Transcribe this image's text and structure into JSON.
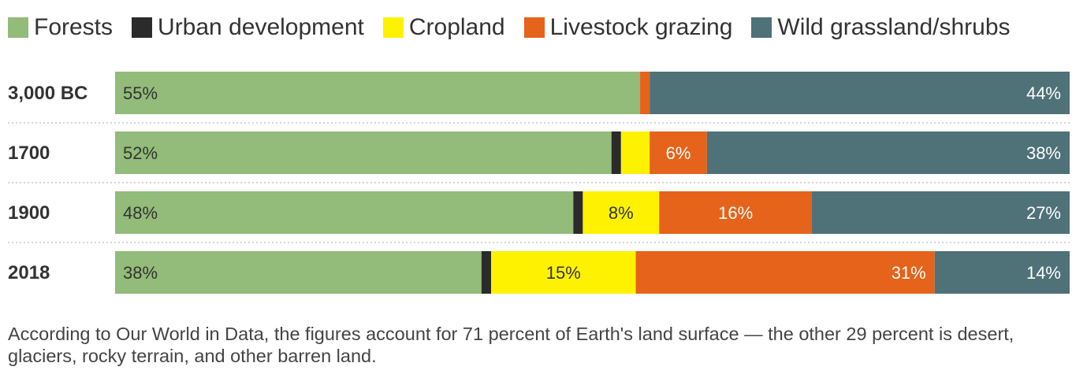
{
  "chart_data": {
    "type": "bar",
    "orientation": "horizontal",
    "stacked": true,
    "normalized_percent": true,
    "categories": [
      "3,000 BC",
      "1700",
      "1900",
      "2018"
    ],
    "series": [
      {
        "name": "Forests",
        "color": "#93bb79",
        "label_color": "#333333",
        "values": [
          55,
          52,
          48,
          38
        ],
        "labels": [
          "55%",
          "52%",
          "48%",
          "38%"
        ]
      },
      {
        "name": "Urban development",
        "color": "#2b2b2b",
        "label_color": "#ffffff",
        "values": [
          0,
          1,
          1,
          1
        ],
        "labels": [
          "",
          "",
          "",
          ""
        ]
      },
      {
        "name": "Cropland",
        "color": "#fff200",
        "label_color": "#333333",
        "values": [
          0,
          3,
          8,
          15
        ],
        "labels": [
          "",
          "",
          "8%",
          "15%"
        ]
      },
      {
        "name": "Livestock grazing",
        "color": "#e5631a",
        "label_color": "#ffffff",
        "values": [
          1,
          6,
          16,
          31
        ],
        "labels": [
          "",
          "6%",
          "16%",
          "31%"
        ]
      },
      {
        "name": "Wild grassland/shrubs",
        "color": "#4f7178",
        "label_color": "#ffffff",
        "values": [
          44,
          38,
          27,
          14
        ],
        "labels": [
          "44%",
          "38%",
          "27%",
          "14%"
        ]
      }
    ],
    "legend_position": "top-left",
    "gridlines": "dotted separators between rows"
  },
  "footnote": "According to Our World in Data, the figures account for 71 percent of Earth's land surface — the other 29 percent is desert, glaciers, rocky terrain, and other barren land."
}
